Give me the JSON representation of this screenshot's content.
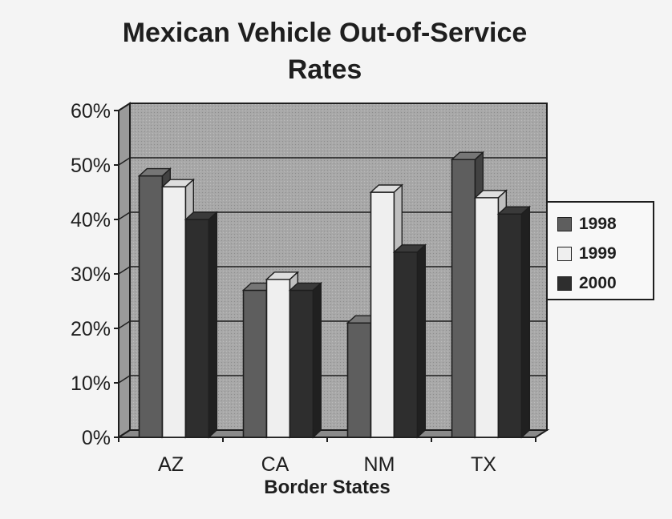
{
  "chart_data": {
    "type": "bar",
    "title": "Mexican Vehicle Out-of-Service Rates",
    "title_lines": [
      "Mexican Vehicle Out-of-Service",
      "Rates"
    ],
    "xlabel": "Border States",
    "ylabel": "",
    "categories": [
      "AZ",
      "CA",
      "NM",
      "TX"
    ],
    "series": [
      {
        "name": "1998",
        "values": [
          48,
          27,
          21,
          51
        ],
        "color": "#5e5e5e"
      },
      {
        "name": "1999",
        "values": [
          46,
          29,
          45,
          44
        ],
        "color": "#efefef"
      },
      {
        "name": "2000",
        "values": [
          40,
          27,
          34,
          41
        ],
        "color": "#2e2e2e"
      }
    ],
    "ylim": [
      0,
      60
    ],
    "yticks": [
      0,
      10,
      20,
      30,
      40,
      50,
      60
    ],
    "ytick_format": "percent",
    "grid": true,
    "style": "3d",
    "legend_position": "right",
    "plot_background": "#a8a8a8"
  }
}
